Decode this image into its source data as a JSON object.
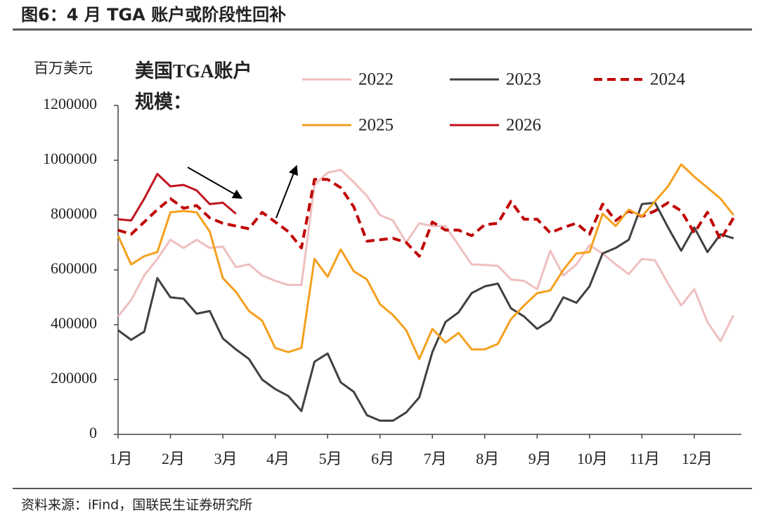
{
  "page_title": "图6：4 月 TGA 账户或阶段性回补",
  "source": "资料来源：iFind，国联民生证券研究所",
  "chart_data": {
    "type": "line",
    "y_unit": "百万美元",
    "annotation": [
      "美国TGA账户",
      "规模："
    ],
    "x": [
      1,
      1.25,
      1.5,
      1.75,
      2,
      2.25,
      2.5,
      2.75,
      3,
      3.25,
      3.5,
      3.75,
      4,
      4.25,
      4.5,
      4.75,
      5,
      5.25,
      5.5,
      5.75,
      6,
      6.25,
      6.5,
      6.75,
      7,
      7.25,
      7.5,
      7.75,
      8,
      8.25,
      8.5,
      8.75,
      9,
      9.25,
      9.5,
      9.75,
      10,
      10.25,
      10.5,
      10.75,
      11,
      11.25,
      11.5,
      11.75,
      12,
      12.25,
      12.5,
      12.75
    ],
    "xlim": [
      1,
      12.9
    ],
    "xticks": [
      {
        "value": 1,
        "label": "1月"
      },
      {
        "value": 2,
        "label": "2月"
      },
      {
        "value": 3,
        "label": "3月"
      },
      {
        "value": 4,
        "label": "4月"
      },
      {
        "value": 5,
        "label": "5月"
      },
      {
        "value": 6,
        "label": "6月"
      },
      {
        "value": 7,
        "label": "7月"
      },
      {
        "value": 8,
        "label": "8月"
      },
      {
        "value": 9,
        "label": "9月"
      },
      {
        "value": 10,
        "label": "10月"
      },
      {
        "value": 11,
        "label": "11月"
      },
      {
        "value": 12,
        "label": "12月"
      }
    ],
    "ylim": [
      0,
      1200000
    ],
    "yticks": [
      0,
      200000,
      400000,
      600000,
      800000,
      1000000,
      1200000
    ],
    "series": [
      {
        "name": "2022",
        "color": "#efbfbf",
        "values": [
          430000,
          490000,
          580000,
          640000,
          710000,
          680000,
          710000,
          680000,
          685000,
          610000,
          620000,
          580000,
          560000,
          545000,
          545000,
          910000,
          955000,
          965000,
          920000,
          870000,
          800000,
          780000,
          700000,
          770000,
          760000,
          760000,
          690000,
          620000,
          618000,
          615000,
          565000,
          560000,
          530000,
          670000,
          580000,
          620000,
          690000,
          660000,
          620000,
          585000,
          640000,
          635000,
          550000,
          470000,
          530000,
          410000,
          340000,
          435000
        ]
      },
      {
        "name": "2023",
        "color": "#404040",
        "values": [
          380000,
          345000,
          375000,
          570000,
          500000,
          495000,
          440000,
          450000,
          350000,
          310000,
          275000,
          200000,
          165000,
          140000,
          85000,
          265000,
          295000,
          190000,
          155000,
          70000,
          50000,
          50000,
          80000,
          135000,
          300000,
          410000,
          445000,
          515000,
          540000,
          550000,
          460000,
          430000,
          385000,
          415000,
          500000,
          480000,
          540000,
          660000,
          680000,
          710000,
          840000,
          845000,
          755000,
          670000,
          755000,
          665000,
          730000,
          715000
        ]
      },
      {
        "name": "2024",
        "color": "#c00000",
        "dashed": true,
        "values": [
          745000,
          730000,
          775000,
          820000,
          860000,
          825000,
          835000,
          790000,
          770000,
          760000,
          750000,
          810000,
          775000,
          740000,
          680000,
          930000,
          930000,
          900000,
          830000,
          705000,
          710000,
          715000,
          700000,
          650000,
          775000,
          745000,
          745000,
          725000,
          765000,
          770000,
          850000,
          785000,
          785000,
          735000,
          755000,
          770000,
          730000,
          840000,
          780000,
          815000,
          795000,
          815000,
          845000,
          815000,
          735000,
          810000,
          710000,
          790000
        ]
      },
      {
        "name": "2025",
        "color": "#f5a01e",
        "values": [
          725000,
          620000,
          650000,
          665000,
          810000,
          815000,
          810000,
          740000,
          570000,
          520000,
          450000,
          415000,
          315000,
          300000,
          315000,
          640000,
          575000,
          675000,
          595000,
          565000,
          475000,
          435000,
          380000,
          275000,
          385000,
          335000,
          370000,
          310000,
          310000,
          330000,
          420000,
          470000,
          515000,
          525000,
          600000,
          660000,
          665000,
          805000,
          760000,
          820000,
          795000,
          850000,
          905000,
          985000,
          940000,
          900000,
          860000,
          800000
        ]
      },
      {
        "name": "2026",
        "color": "#c0141c",
        "values": [
          785000,
          780000,
          860000,
          950000,
          905000,
          910000,
          890000,
          840000,
          845000,
          805000,
          null,
          null,
          null,
          null,
          null,
          null,
          null,
          null,
          null,
          null,
          null,
          null,
          null,
          null,
          null,
          null,
          null,
          null,
          null,
          null,
          null,
          null,
          null,
          null,
          null,
          null,
          null,
          null,
          null,
          null,
          null,
          null,
          null,
          null,
          null,
          null,
          null,
          null
        ]
      }
    ]
  }
}
